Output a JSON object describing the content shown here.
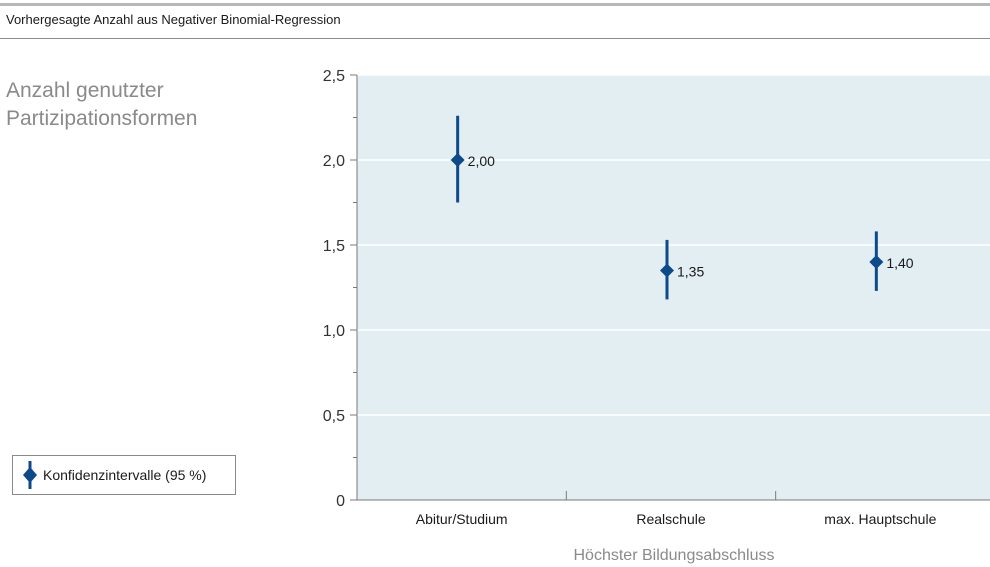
{
  "header": {
    "title": "Vorhergesagte Anzahl aus Negativer Binomial-Regression"
  },
  "legend": {
    "label": "Konfidenzintervalle (95 %)"
  },
  "colors": {
    "marker": "#0d4a8a",
    "plot_background": "#e3eef3",
    "grid": "#ffffff",
    "axis": "#7a7a7a",
    "ylabel": "#8a8a8a"
  },
  "chart_data": {
    "type": "scatter",
    "ylabel": "Anzahl genutzter Partizipationsformen",
    "xlabel": "Höchster Bildungsabschluss",
    "categories": [
      "Abitur/Studium",
      "Realschule",
      "max. Hauptschule"
    ],
    "values": [
      2.0,
      1.35,
      1.4
    ],
    "value_labels": [
      "2,00",
      "1,35",
      "1,40"
    ],
    "ci_lower": [
      1.75,
      1.18,
      1.23
    ],
    "ci_upper": [
      2.26,
      1.53,
      1.58
    ],
    "ylim": [
      0,
      2.5
    ],
    "yticks": [
      0,
      0.5,
      1.0,
      1.5,
      2.0,
      2.5
    ],
    "ytick_labels": [
      "0",
      "0,5",
      "1,0",
      "1,5",
      "2,0",
      "2,5"
    ],
    "grid": true,
    "legend_position": "bottom-left"
  }
}
